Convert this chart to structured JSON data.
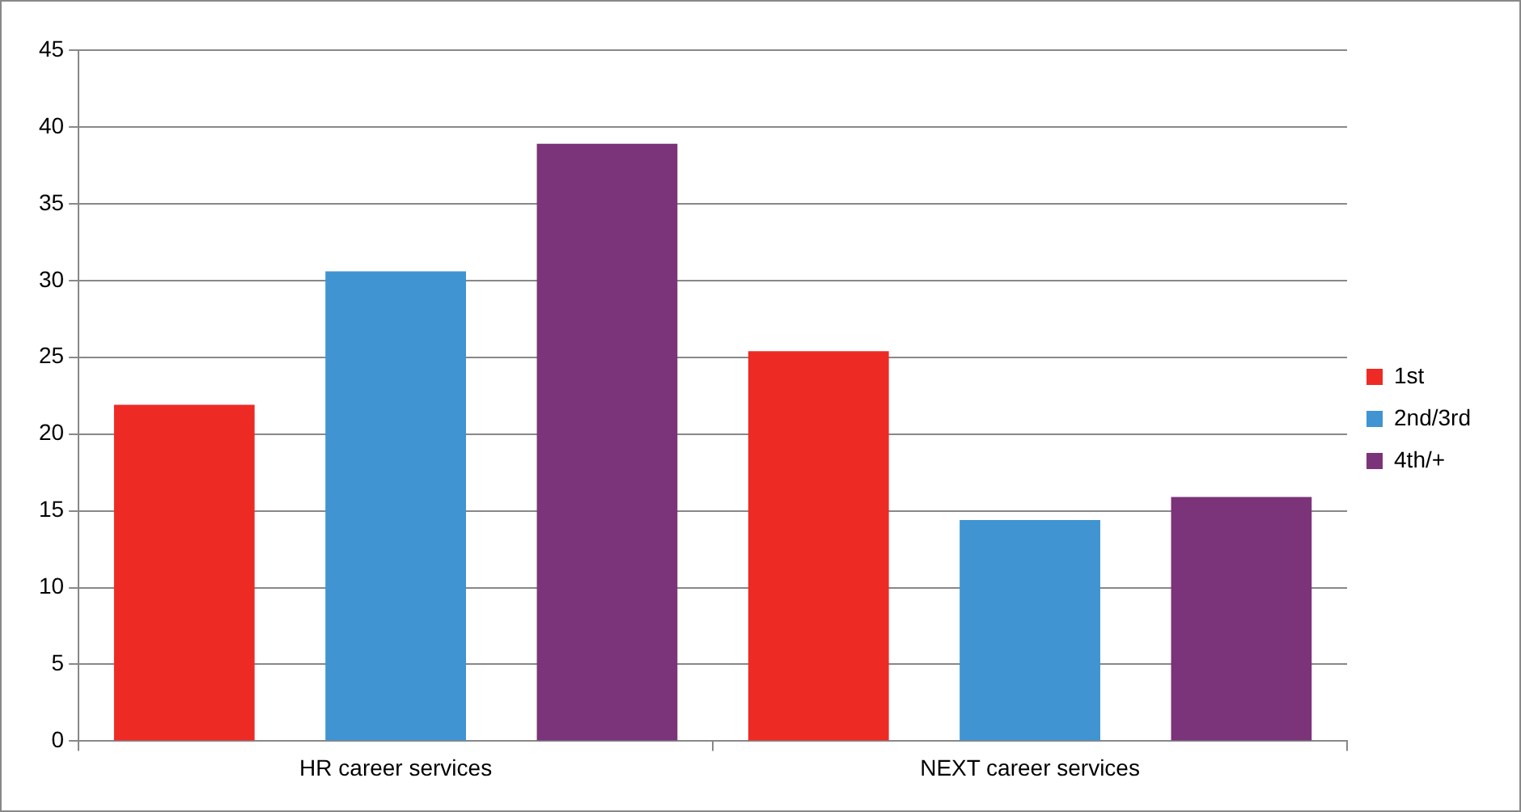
{
  "chart_data": {
    "type": "bar",
    "categories": [
      "HR career services",
      "NEXT career services"
    ],
    "series": [
      {
        "name": "1st",
        "color": "#ee2a24",
        "values": [
          21.9,
          25.4
        ]
      },
      {
        "name": "2nd/3rd",
        "color": "#3f94d1",
        "values": [
          30.6,
          14.4
        ]
      },
      {
        "name": "4th/+",
        "color": "#7b3379",
        "values": [
          38.9,
          15.9
        ]
      }
    ],
    "ylim": [
      0,
      45
    ],
    "yticks": [
      0,
      5,
      10,
      15,
      20,
      25,
      30,
      35,
      40,
      45
    ],
    "grid": "y",
    "legend": "right"
  }
}
